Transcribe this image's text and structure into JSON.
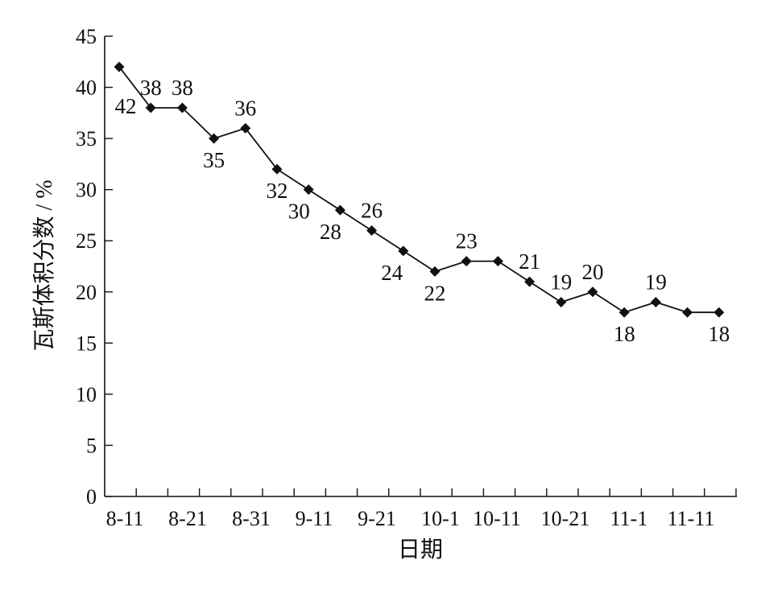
{
  "chart_data": {
    "type": "line",
    "xlabel": "日期",
    "ylabel": "瓦斯体积分数 / %",
    "ylim": [
      0,
      45
    ],
    "yticks": [
      0,
      5,
      10,
      15,
      20,
      25,
      30,
      35,
      40,
      45
    ],
    "x_tick_labels": [
      "8-11",
      "8-21",
      "8-31",
      "9-11",
      "9-21",
      "10-1",
      "10-11",
      "10-21",
      "11-1",
      "11-11"
    ],
    "grid": false,
    "legend": "none",
    "series": [
      {
        "values": [
          42,
          38,
          38,
          35,
          36,
          32,
          30,
          28,
          26,
          24,
          22,
          23,
          23,
          21,
          19,
          20,
          18,
          19,
          18,
          18
        ],
        "data_labels": [
          "42",
          "38",
          "38",
          "35",
          "36",
          "32",
          "30",
          "28",
          "26",
          "24",
          "22",
          "23",
          "",
          "21",
          "19",
          "20",
          "18",
          "19",
          "",
          "18"
        ],
        "marker": "diamond",
        "color": "#111111"
      }
    ]
  }
}
